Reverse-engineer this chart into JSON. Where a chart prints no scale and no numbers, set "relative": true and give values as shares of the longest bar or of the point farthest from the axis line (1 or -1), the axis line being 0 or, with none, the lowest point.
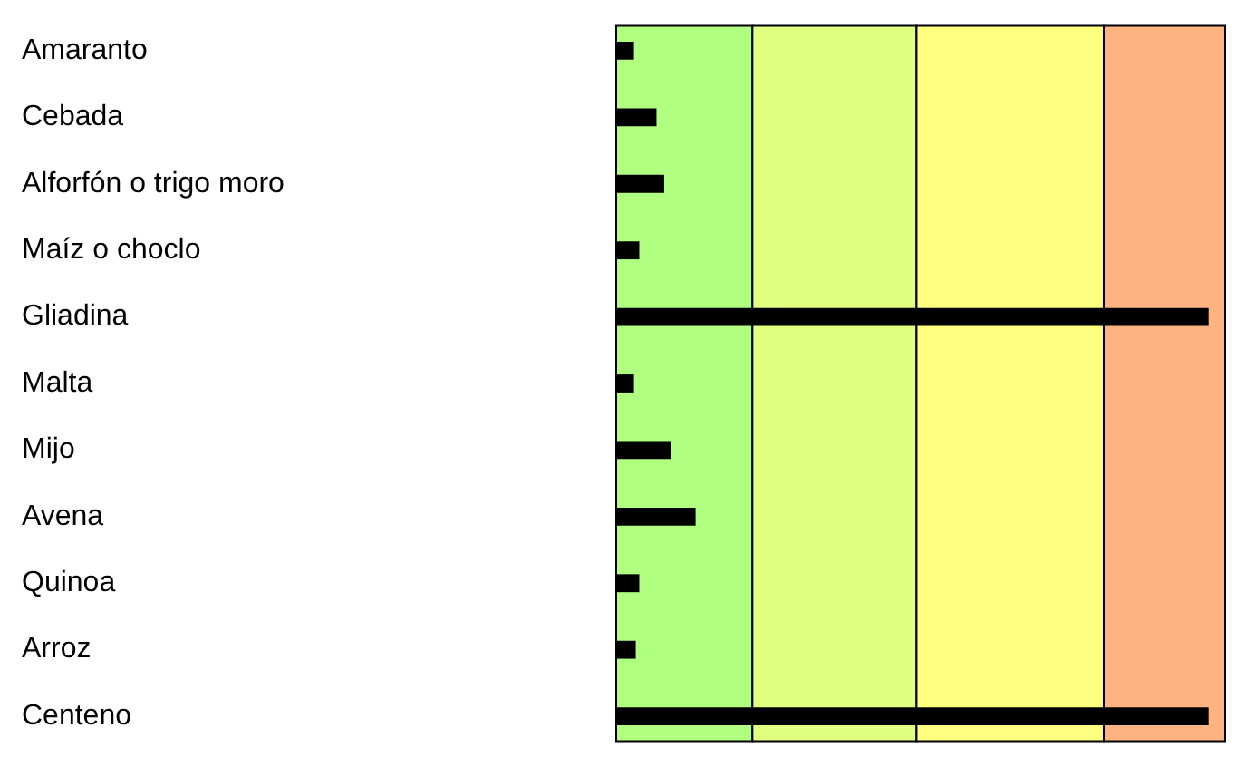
{
  "chart_data": {
    "type": "bar",
    "orientation": "horizontal",
    "relative": true,
    "categories": [
      "Amaranto",
      "Cebada",
      "Alforfón o trigo moro",
      "Maíz o choclo",
      "Gliadina",
      "Malta",
      "Mijo",
      "Avena",
      "Quinoa",
      "Arroz",
      "Centeno"
    ],
    "values": [
      0.03,
      0.068,
      0.081,
      0.039,
      1,
      0.03,
      0.092,
      0.134,
      0.039,
      0.033,
      1
    ],
    "color": "#000000",
    "bands": [
      {
        "axis": "x",
        "from": 0,
        "to": 0.23,
        "color": "#b0ff80"
      },
      {
        "axis": "x",
        "from": 0.23,
        "to": 0.507,
        "color": "#e0ff80"
      },
      {
        "axis": "x",
        "from": 0.507,
        "to": 0.823,
        "color": "#ffff80"
      },
      {
        "axis": "x",
        "from": 0.823,
        "to": 1.028,
        "color": "#ffb380"
      }
    ],
    "grid": false,
    "legend": false,
    "tick_labels": "y"
  }
}
